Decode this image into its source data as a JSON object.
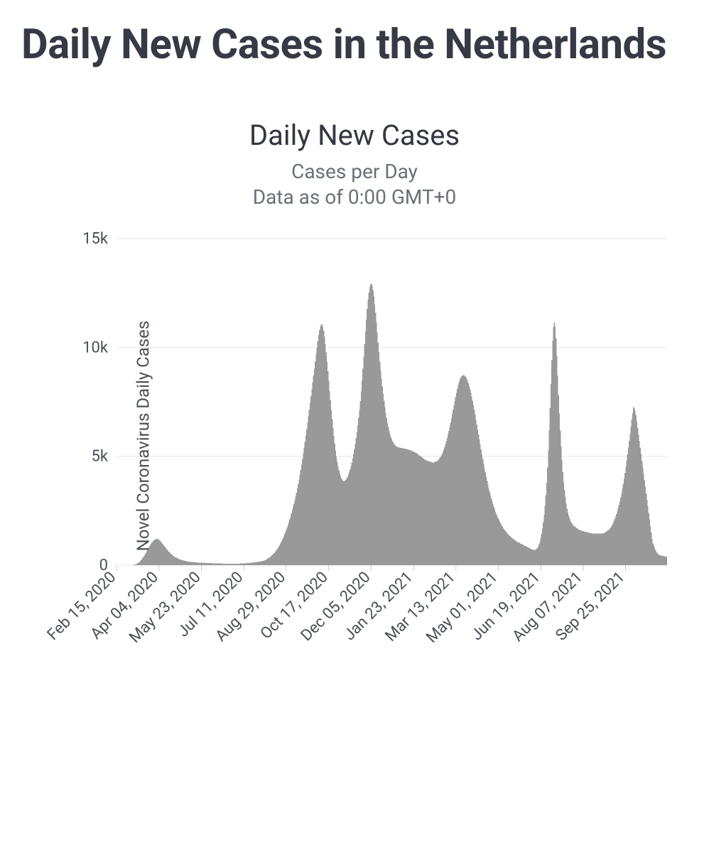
{
  "header": {
    "title": "Daily New Cases in the Netherlands"
  },
  "chart": {
    "type": "bar",
    "title": "Daily New Cases",
    "subtitle_line1": "Cases per Day",
    "subtitle_line2": "Data as of 0:00 GMT+0",
    "y_axis_label": "Novel Coronavirus Daily Cases",
    "background_color": "#ffffff",
    "bar_color": "#999999",
    "grid_color": "#e6e6e6",
    "tick_text_color": "#4a4f57",
    "title_fontsize": 40,
    "subtitle_fontsize": 28,
    "tick_fontsize": 22,
    "y_label_fontsize": 24,
    "ylim": [
      0,
      15000
    ],
    "ytick_step": 5000,
    "ytick_labels": [
      "0",
      "5k",
      "10k",
      "15k"
    ],
    "x_categories": [
      "Feb 15, 2020",
      "Apr 04, 2020",
      "May 23, 2020",
      "Jul 11, 2020",
      "Aug 29, 2020",
      "Oct 17, 2020",
      "Dec 05, 2020",
      "Jan 23, 2021",
      "Mar 13, 2021",
      "May 01, 2021",
      "Jun 19, 2021",
      "Aug 07, 2021",
      "Sep 25, 2021"
    ],
    "x_tickpos": [
      0,
      49,
      98,
      147,
      196,
      245,
      294,
      343,
      392,
      441,
      490,
      539,
      588
    ],
    "n_total_days": 637,
    "values": [
      0,
      0,
      0,
      0,
      0,
      0,
      0,
      0,
      0,
      0,
      0,
      0,
      0,
      0,
      0,
      0,
      0,
      0,
      5,
      10,
      20,
      30,
      40,
      60,
      80,
      100,
      130,
      170,
      210,
      260,
      310,
      370,
      430,
      490,
      560,
      630,
      700,
      770,
      840,
      910,
      980,
      1040,
      1090,
      1130,
      1160,
      1180,
      1200,
      1210,
      1200,
      1180,
      1150,
      1110,
      1060,
      1010,
      960,
      910,
      860,
      810,
      760,
      710,
      660,
      620,
      580,
      540,
      500,
      470,
      440,
      410,
      380,
      360,
      340,
      320,
      300,
      280,
      260,
      250,
      240,
      230,
      220,
      210,
      200,
      190,
      180,
      170,
      165,
      160,
      155,
      150,
      145,
      140,
      135,
      130,
      128,
      126,
      124,
      122,
      120,
      118,
      116,
      114,
      112,
      110,
      108,
      106,
      104,
      102,
      100,
      98,
      96,
      94,
      92,
      90,
      88,
      86,
      84,
      82,
      80,
      79,
      78,
      77,
      76,
      75,
      74,
      73,
      72,
      71,
      70,
      69,
      68,
      67,
      66,
      65,
      64,
      64,
      64,
      64,
      64,
      64,
      65,
      66,
      67,
      68,
      69,
      70,
      72,
      74,
      76,
      78,
      80,
      82,
      85,
      88,
      91,
      94,
      97,
      100,
      104,
      108,
      112,
      116,
      120,
      125,
      130,
      135,
      140,
      146,
      152,
      158,
      165,
      172,
      180,
      190,
      200,
      215,
      230,
      250,
      270,
      295,
      320,
      350,
      380,
      415,
      450,
      490,
      530,
      575,
      620,
      670,
      720,
      780,
      840,
      910,
      980,
      1060,
      1140,
      1230,
      1320,
      1420,
      1520,
      1630,
      1740,
      1860,
      1980,
      2110,
      2240,
      2380,
      2520,
      2670,
      2820,
      2980,
      3150,
      3330,
      3520,
      3720,
      3930,
      4150,
      4380,
      4620,
      4870,
      5130,
      5400,
      5680,
      5960,
      6250,
      6540,
      6840,
      7140,
      7450,
      7760,
      8080,
      8400,
      8720,
      9040,
      9360,
      9680,
      9990,
      10290,
      10560,
      10790,
      10960,
      11060,
      11060,
      10960,
      10760,
      10480,
      10140,
      9760,
      9340,
      8900,
      8460,
      8010,
      7560,
      7120,
      6700,
      6310,
      5940,
      5590,
      5270,
      4990,
      4750,
      4540,
      4360,
      4210,
      4080,
      3980,
      3910,
      3870,
      3860,
      3880,
      3920,
      3980,
      4060,
      4160,
      4270,
      4400,
      4550,
      4720,
      4910,
      5110,
      5330,
      5570,
      5830,
      6110,
      6420,
      6760,
      7130,
      7540,
      7990,
      8480,
      9010,
      9570,
      10150,
      10730,
      11280,
      11780,
      12200,
      12530,
      12760,
      12900,
      12930,
      12840,
      12640,
      12350,
      11990,
      11590,
      11150,
      10690,
      10230,
      9780,
      9350,
      8950,
      8570,
      8210,
      7870,
      7550,
      7260,
      6990,
      6750,
      6530,
      6340,
      6170,
      6020,
      5890,
      5780,
      5690,
      5620,
      5560,
      5510,
      5470,
      5440,
      5420,
      5410,
      5400,
      5390,
      5380,
      5380,
      5370,
      5360,
      5350,
      5340,
      5330,
      5320,
      5310,
      5300,
      5290,
      5280,
      5260,
      5240,
      5230,
      5210,
      5190,
      5170,
      5150,
      5120,
      5090,
      5060,
      5030,
      5000,
      4970,
      4940,
      4910,
      4880,
      4850,
      4830,
      4810,
      4790,
      4770,
      4760,
      4750,
      4740,
      4730,
      4720,
      4720,
      4730,
      4740,
      4760,
      4780,
      4810,
      4850,
      4900,
      4960,
      5030,
      5110,
      5200,
      5300,
      5420,
      5550,
      5690,
      5840,
      6000,
      6170,
      6350,
      6540,
      6740,
      6940,
      7140,
      7340,
      7540,
      7730,
      7920,
      8100,
      8260,
      8400,
      8520,
      8610,
      8680,
      8720,
      8730,
      8720,
      8690,
      8640,
      8570,
      8480,
      8370,
      8240,
      8090,
      7920,
      7740,
      7550,
      7350,
      7140,
      6920,
      6690,
      6460,
      6230,
      6000,
      5770,
      5540,
      5310,
      5090,
      4870,
      4660,
      4450,
      4250,
      4060,
      3880,
      3700,
      3530,
      3370,
      3220,
      3070,
      2930,
      2800,
      2680,
      2560,
      2450,
      2350,
      2250,
      2160,
      2080,
      2000,
      1920,
      1850,
      1780,
      1720,
      1660,
      1600,
      1550,
      1500,
      1450,
      1410,
      1370,
      1330,
      1290,
      1260,
      1230,
      1200,
      1170,
      1140,
      1110,
      1080,
      1060,
      1040,
      1020,
      1000,
      980,
      960,
      940,
      920,
      900,
      880,
      860,
      840,
      820,
      800,
      780,
      760,
      740,
      720,
      710,
      700,
      700,
      710,
      740,
      790,
      860,
      950,
      1080,
      1240,
      1440,
      1680,
      1970,
      2320,
      2730,
      3220,
      3800,
      4480,
      5280,
      6200,
      7230,
      8330,
      9400,
      10300,
      10920,
      11160,
      10980,
      10420,
      9620,
      8710,
      7810,
      6960,
      6180,
      5470,
      4840,
      4290,
      3830,
      3440,
      3110,
      2830,
      2600,
      2410,
      2260,
      2140,
      2040,
      1960,
      1900,
      1850,
      1810,
      1780,
      1750,
      1720,
      1690,
      1660,
      1630,
      1610,
      1590,
      1580,
      1570,
      1560,
      1550,
      1540,
      1530,
      1520,
      1510,
      1500,
      1490,
      1480,
      1470,
      1460,
      1450,
      1450,
      1450,
      1450,
      1450,
      1450,
      1450,
      1450,
      1450,
      1450,
      1450,
      1450,
      1460,
      1470,
      1490,
      1510,
      1530,
      1560,
      1590,
      1630,
      1670,
      1720,
      1780,
      1850,
      1930,
      2020,
      2120,
      2230,
      2350,
      2480,
      2620,
      2770,
      2930,
      3110,
      3300,
      3510,
      3740,
      3980,
      4240,
      4510,
      4790,
      5080,
      5390,
      5710,
      6030,
      6360,
      6680,
      6980,
      7260,
      7220,
      7100,
      6900,
      6600,
      6300,
      6000,
      5700,
      5400,
      5100,
      4800,
      4500,
      4200,
      3900,
      3600,
      3300,
      3000,
      2700,
      2400,
      2100,
      1800,
      1500,
      1200,
      1000,
      900,
      800,
      700,
      600,
      550,
      500,
      480,
      460,
      450,
      440,
      430,
      420,
      410,
      400,
      395,
      390
    ]
  }
}
